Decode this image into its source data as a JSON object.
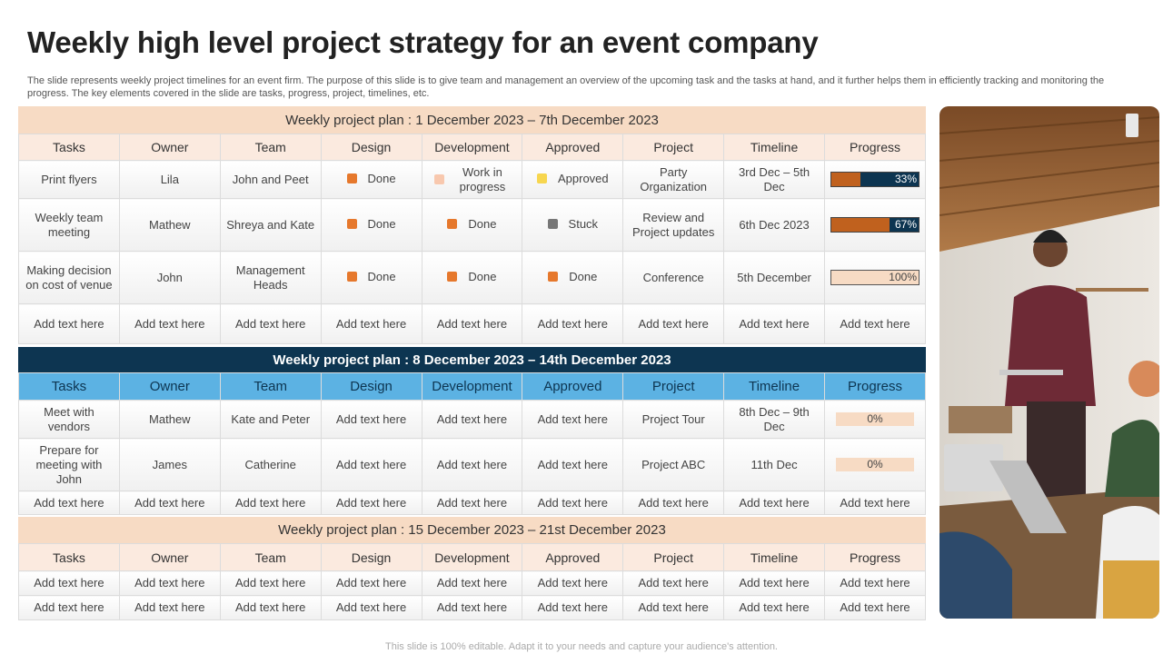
{
  "title": "Weekly high level project strategy for an event company",
  "description": "The slide represents weekly project timelines for an event firm. The purpose of this slide is to give team and management an overview of the upcoming task and the tasks at hand, and it further helps them in efficiently tracking and monitoring the progress. The key elements covered in the slide are tasks, progress, project, timelines, etc.",
  "footer": "This slide is 100% editable. Adapt it to your needs and capture your audience's attention.",
  "colors": {
    "done": "#e6782c",
    "in_progress": "#f8c8ae",
    "approved": "#f7d64f",
    "stuck": "#777777",
    "navy": "#0d3551",
    "peach": "#f7dbc4",
    "blue_header": "#5cb2e3",
    "progress_fill": "#c0611e"
  },
  "headers": [
    "Tasks",
    "Owner",
    "Team",
    "Design",
    "Development",
    "Approved",
    "Project",
    "Timeline",
    "Progress"
  ],
  "week1": {
    "title": "Weekly project plan : 1 December 2023 – 7th December 2023",
    "rows": [
      {
        "task": "Print flyers",
        "owner": "Lila",
        "team": "John and Peet",
        "design": {
          "label": "Done",
          "status": "done"
        },
        "development": {
          "label": "Work in progress",
          "status": "in_progress"
        },
        "approved": {
          "label": "Approved",
          "status": "approved"
        },
        "project": "Party Organization",
        "timeline": "3rd Dec – 5th Dec",
        "progress": {
          "label": "33%",
          "value": 0.33
        }
      },
      {
        "task": "Weekly team meeting",
        "owner": "Mathew",
        "team": "Shreya and Kate",
        "design": {
          "label": "Done",
          "status": "done"
        },
        "development": {
          "label": "Done",
          "status": "done"
        },
        "approved": {
          "label": "Stuck",
          "status": "stuck"
        },
        "project": "Review and Project updates",
        "timeline": "6th Dec 2023",
        "progress": {
          "label": "67%",
          "value": 0.67
        }
      },
      {
        "task": "Making decision on cost of venue",
        "owner": "John",
        "team": "Management Heads",
        "design": {
          "label": "Done",
          "status": "done"
        },
        "development": {
          "label": "Done",
          "status": "done"
        },
        "approved": {
          "label": "Done",
          "status": "done"
        },
        "project": "Conference",
        "timeline": "5th December",
        "progress": {
          "label": "100%",
          "value": 1.0
        }
      }
    ],
    "placeholder_row": [
      "Add text here",
      "Add text here",
      "Add text here",
      "Add text here",
      "Add text here",
      "Add text here",
      "Add text here",
      "Add text here",
      "Add text here"
    ]
  },
  "week2": {
    "title": "Weekly project plan : 8 December 2023 – 14th December 2023",
    "rows": [
      {
        "task": "Meet with vendors",
        "owner": "Mathew",
        "team": "Kate and Peter",
        "design": "Add text here",
        "development": "Add text here",
        "approved": "Add text here",
        "project": "Project Tour",
        "timeline": "8th Dec – 9th Dec",
        "progress": {
          "label": "0%",
          "value": 0
        }
      },
      {
        "task": "Prepare for meeting with John",
        "owner": "James",
        "team": "Catherine",
        "design": "Add text here",
        "development": "Add text here",
        "approved": "Add text here",
        "project": "Project ABC",
        "timeline": "11th Dec",
        "progress": {
          "label": "0%",
          "value": 0
        }
      }
    ],
    "placeholder_row": [
      "Add text here",
      "Add text here",
      "Add text here",
      "Add text here",
      "Add text here",
      "Add text here",
      "Add text here",
      "Add text here",
      "Add text here"
    ]
  },
  "week3": {
    "title": "Weekly project plan : 15 December 2023 – 21st December 2023",
    "placeholder_rows": [
      [
        "Add text here",
        "Add text here",
        "Add text here",
        "Add text here",
        "Add text here",
        "Add text here",
        "Add text here",
        "Add text here",
        "Add text here"
      ],
      [
        "Add text here",
        "Add text here",
        "Add text here",
        "Add text here",
        "Add text here",
        "Add text here",
        "Add text here",
        "Add text here",
        "Add text here"
      ]
    ]
  }
}
